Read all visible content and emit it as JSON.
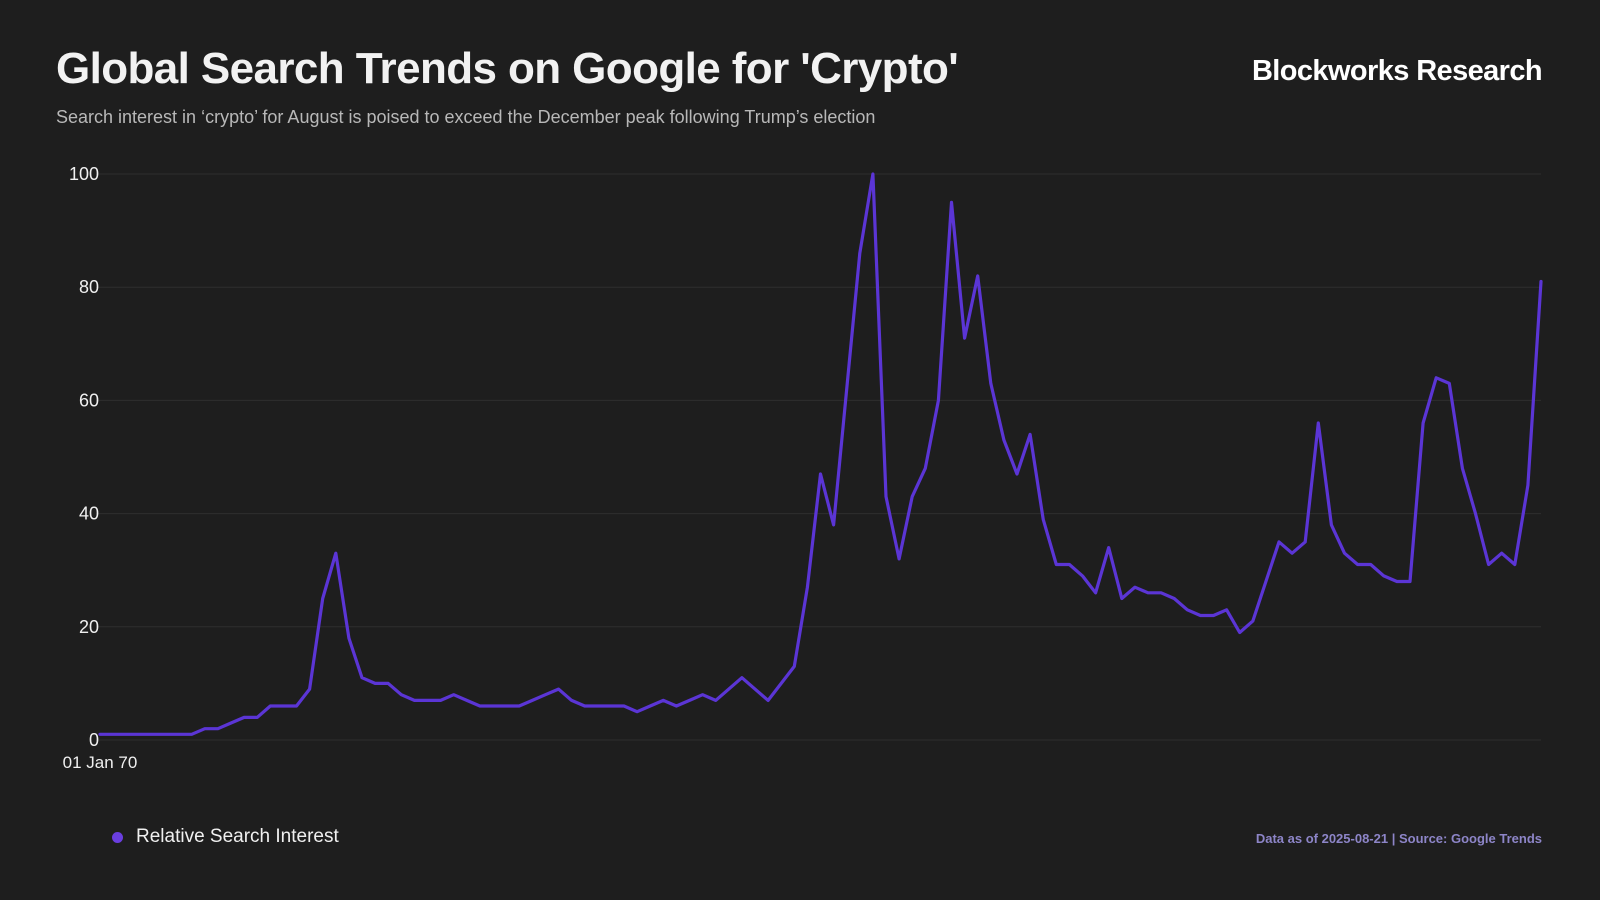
{
  "header": {
    "title": "Global Search Trends on Google for 'Crypto'",
    "subtitle": "Search interest in ‘crypto’ for August is poised to exceed the December peak following Trump’s election",
    "brand": "Blockworks Research"
  },
  "footer": {
    "source": "Data as of 2025-08-21 | Source: Google Trends"
  },
  "colors": {
    "background": "#1e1e1e",
    "line": "#5b35d5",
    "grid": "#2e2e2e",
    "legend_dot": "#6a3ee0",
    "source_text": "#8d85c8"
  },
  "chart_data": {
    "type": "line",
    "title": "Global Search Trends on Google for 'Crypto'",
    "xlabel": "",
    "ylabel": "",
    "ylim": [
      0,
      100
    ],
    "yticks": [
      0,
      20,
      40,
      60,
      80,
      100
    ],
    "ytick_labels": [
      "0",
      "20",
      "40",
      "60",
      "80",
      "100"
    ],
    "xtick_labels": [
      "01 Jan 70"
    ],
    "grid": true,
    "legend_position": "bottom-left",
    "series": [
      {
        "name": "Relative Search Interest",
        "color": "#5b35d5",
        "values": [
          1,
          1,
          1,
          1,
          1,
          1,
          1,
          1,
          2,
          2,
          3,
          4,
          4,
          6,
          6,
          6,
          9,
          25,
          33,
          18,
          11,
          10,
          10,
          8,
          7,
          7,
          7,
          8,
          7,
          6,
          6,
          6,
          6,
          7,
          8,
          9,
          7,
          6,
          6,
          6,
          6,
          5,
          6,
          7,
          6,
          7,
          8,
          7,
          9,
          11,
          9,
          7,
          10,
          13,
          27,
          47,
          38,
          62,
          86,
          100,
          43,
          32,
          43,
          48,
          60,
          95,
          71,
          82,
          63,
          53,
          47,
          54,
          39,
          31,
          31,
          29,
          26,
          34,
          25,
          27,
          26,
          26,
          25,
          23,
          22,
          22,
          23,
          19,
          21,
          28,
          35,
          33,
          35,
          56,
          38,
          33,
          31,
          31,
          29,
          28,
          28,
          56,
          64,
          63,
          48,
          40,
          31,
          33,
          31,
          45,
          81
        ]
      }
    ]
  }
}
